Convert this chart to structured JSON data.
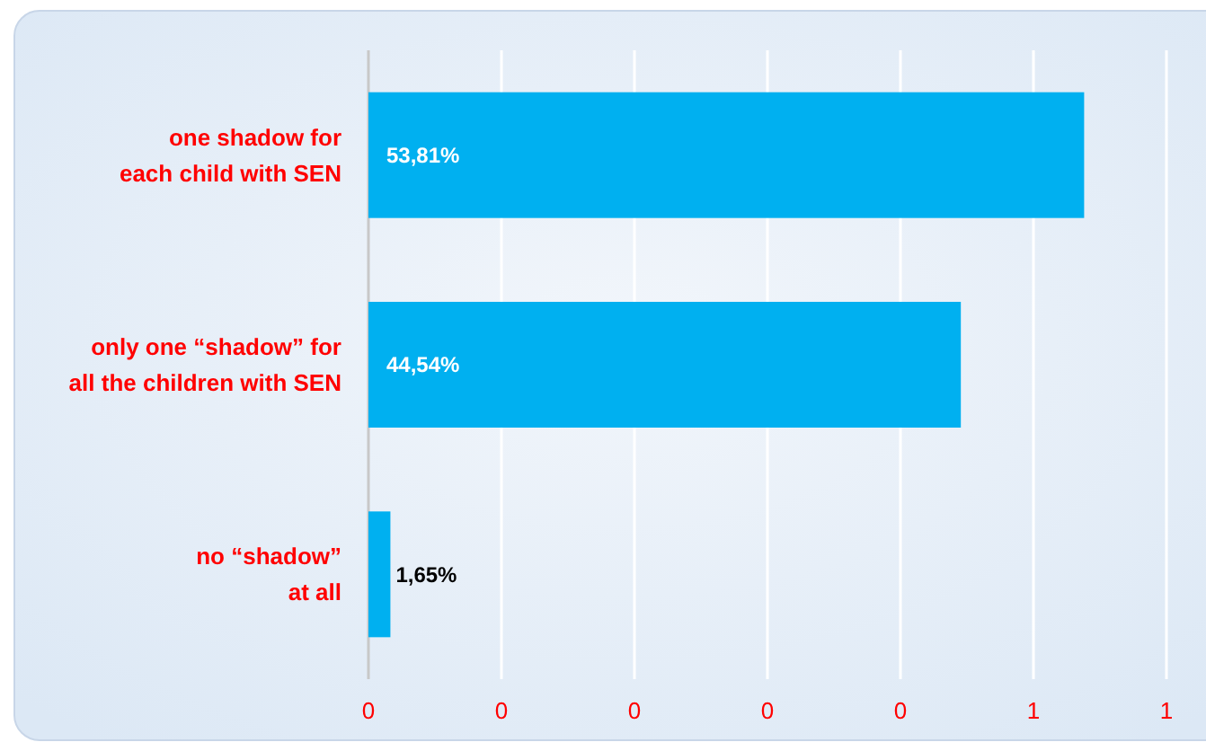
{
  "chart_data": {
    "type": "bar",
    "orientation": "horizontal",
    "categories": [
      "one shadow for\neach child with SEN",
      "only one “shadow” for\nall the children with SEN",
      "no “shadow”\nat all"
    ],
    "values": [
      0.5381,
      0.4454,
      0.0165
    ],
    "value_labels": [
      "53,81%",
      "44,54%",
      "1,65%"
    ],
    "color": "#00b0f0",
    "xlim": [
      0,
      0.6
    ],
    "xticks": [
      {
        "value": 0,
        "label": "0"
      },
      {
        "value": 0.1,
        "label": "0"
      },
      {
        "value": 0.2,
        "label": "0"
      },
      {
        "value": 0.3,
        "label": "0"
      },
      {
        "value": 0.4,
        "label": "0"
      },
      {
        "value": 0.5,
        "label": "1"
      },
      {
        "value": 0.6,
        "label": "1"
      }
    ],
    "grid": "x"
  }
}
